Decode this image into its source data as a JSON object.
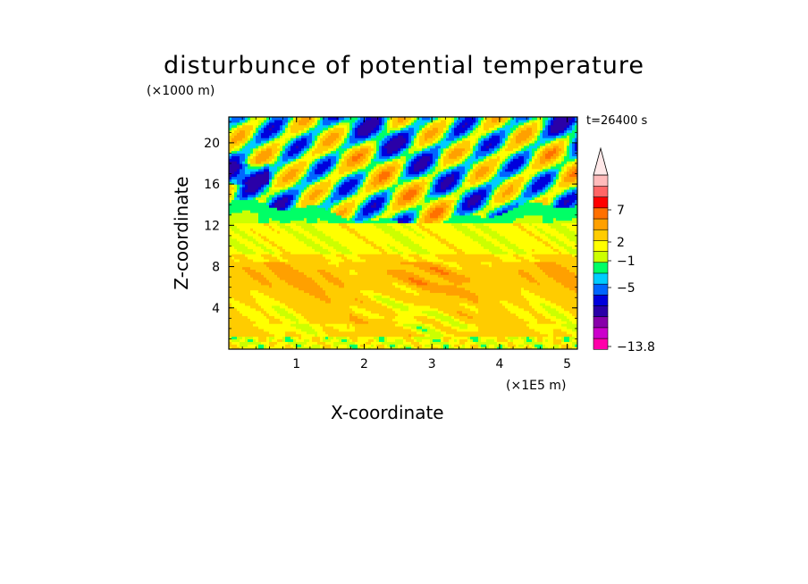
{
  "chart_data": {
    "type": "heatmap",
    "title": "disturbunce of potential temperature",
    "xlabel": "X-coordinate",
    "ylabel": "Z-coordinate",
    "x_multiplier_label": "(×1E5 m)",
    "y_multiplier_label": "(×1000 m)",
    "time_label": "t=26400 s",
    "xlim": [
      0,
      5.15
    ],
    "ylim": [
      0,
      22.5
    ],
    "x_ticks": [
      "1",
      "2",
      "3",
      "4",
      "5"
    ],
    "y_ticks": [
      "4",
      "8",
      "12",
      "16",
      "20"
    ],
    "colorbar": {
      "colors": [
        "#ff00aa",
        "#cc00cc",
        "#8800aa",
        "#2a00a8",
        "#0000dd",
        "#0066ff",
        "#00ccff",
        "#00ff66",
        "#ccff00",
        "#ffff00",
        "#ffcc00",
        "#ffa000",
        "#ff7000",
        "#ff0000",
        "#ff6666",
        "#ffbbbb"
      ],
      "labels": [
        "7",
        "2",
        "−1",
        "−5",
        "−13.8"
      ],
      "extend": "max"
    },
    "field_levels": [
      {
        "z_range": [
          0,
          1.5
        ],
        "dominant": "yellow/orange with green patches"
      },
      {
        "z_range": [
          1.5,
          8
        ],
        "dominant": "orange (~2 to 4)"
      },
      {
        "z_range": [
          8,
          12.5
        ],
        "dominant": "yellow (~0 to 2)"
      },
      {
        "z_range": [
          12.5,
          15
        ],
        "dominant": "green (~-1)"
      },
      {
        "z_range": [
          15,
          22.5
        ],
        "dominant": "wave pattern: orange / cyan / blue (-5 to 4)"
      }
    ]
  }
}
